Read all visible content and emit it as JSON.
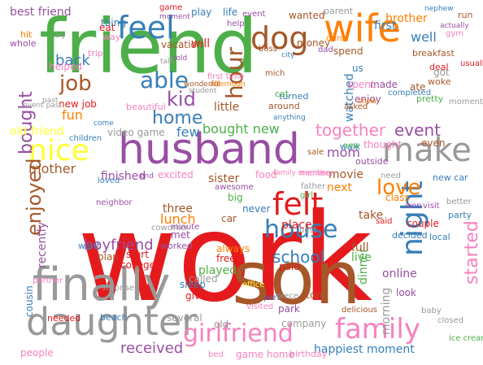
{
  "palette": {
    "red": "#e41a1c",
    "green": "#4daf4a",
    "purple": "#984ea3",
    "orange": "#ff7f00",
    "yellow": "#ffff33",
    "brown": "#a65628",
    "pink": "#f781bf",
    "gray": "#999999",
    "blue": "#377eb8"
  },
  "words": [
    {
      "text": "work",
      "color": "red"
    },
    {
      "text": "friend",
      "color": "green"
    },
    {
      "text": "son",
      "color": "brown"
    },
    {
      "text": "husband",
      "color": "purple"
    },
    {
      "text": "finally",
      "color": "gray"
    },
    {
      "text": "daughter",
      "color": "gray"
    },
    {
      "text": "wife",
      "color": "orange"
    },
    {
      "text": "feel",
      "color": "blue"
    },
    {
      "text": "dog",
      "color": "brown"
    },
    {
      "text": "nice",
      "color": "yellow"
    },
    {
      "text": "make",
      "color": "gray"
    },
    {
      "text": "family",
      "color": "pink"
    },
    {
      "text": "girlfriend",
      "color": "pink"
    },
    {
      "text": "night",
      "color": "blue"
    },
    {
      "text": "felt",
      "color": "red"
    },
    {
      "text": "house",
      "color": "blue"
    },
    {
      "text": "able",
      "color": "blue"
    },
    {
      "text": "kid",
      "color": "purple"
    },
    {
      "text": "home",
      "color": "blue"
    },
    {
      "text": "job",
      "color": "brown"
    },
    {
      "text": "hour",
      "color": "brown"
    },
    {
      "text": "together",
      "color": "pink"
    },
    {
      "text": "event",
      "color": "purple"
    },
    {
      "text": "love",
      "color": "orange"
    },
    {
      "text": "enjoyed",
      "color": "brown"
    },
    {
      "text": "bought",
      "color": "purple"
    },
    {
      "text": "started",
      "color": "pink"
    },
    {
      "text": "school",
      "color": "blue"
    },
    {
      "text": "received",
      "color": "purple"
    },
    {
      "text": "boyfriend",
      "color": "purple"
    },
    {
      "text": "happiest moment",
      "color": "blue"
    },
    {
      "text": "best friend",
      "color": "purple"
    },
    {
      "text": "game",
      "color": "red"
    },
    {
      "text": "back",
      "color": "blue"
    },
    {
      "text": "fun",
      "color": "orange"
    },
    {
      "text": "mother",
      "color": "brown"
    },
    {
      "text": "mom",
      "color": "purple"
    },
    {
      "text": "lunch",
      "color": "orange"
    },
    {
      "text": "bought new",
      "color": "green"
    },
    {
      "text": "well",
      "color": "blue"
    },
    {
      "text": "brother",
      "color": "orange"
    },
    {
      "text": "dinner",
      "color": "green"
    },
    {
      "text": "recently",
      "color": "purple"
    },
    {
      "text": "old friend",
      "color": "yellow"
    },
    {
      "text": "video game",
      "color": "gray"
    },
    {
      "text": "first",
      "color": "blue"
    },
    {
      "text": "three",
      "color": "brown"
    },
    {
      "text": "played",
      "color": "green"
    },
    {
      "text": "morning",
      "color": "gray"
    },
    {
      "text": "finished",
      "color": "purple"
    },
    {
      "text": "new job",
      "color": "red"
    },
    {
      "text": "watched",
      "color": "blue"
    },
    {
      "text": "few",
      "color": "blue"
    },
    {
      "text": "online",
      "color": "purple"
    },
    {
      "text": "place",
      "color": "red"
    },
    {
      "text": "sister",
      "color": "brown"
    },
    {
      "text": "movie",
      "color": "brown"
    },
    {
      "text": "next",
      "color": "orange"
    },
    {
      "text": "little",
      "color": "brown"
    },
    {
      "text": "will",
      "color": "red"
    },
    {
      "text": "even",
      "color": "brown"
    },
    {
      "text": "take",
      "color": "brown"
    },
    {
      "text": "cousin",
      "color": "blue"
    },
    {
      "text": "wanted",
      "color": "brown"
    },
    {
      "text": "money",
      "color": "brown"
    },
    {
      "text": "vacation",
      "color": "brown"
    },
    {
      "text": "play",
      "color": "blue"
    },
    {
      "text": "life",
      "color": "blue"
    },
    {
      "text": "sleep",
      "color": "blue"
    },
    {
      "text": "free",
      "color": "red"
    },
    {
      "text": "paid",
      "color": "red"
    },
    {
      "text": "company",
      "color": "gray"
    },
    {
      "text": "park",
      "color": "purple"
    },
    {
      "text": "store",
      "color": "brown"
    },
    {
      "text": "live",
      "color": "green"
    },
    {
      "text": "full",
      "color": "brown"
    },
    {
      "text": "look",
      "color": "purple"
    },
    {
      "text": "class",
      "color": "orange"
    },
    {
      "text": "people",
      "color": "pink"
    },
    {
      "text": "needed",
      "color": "red"
    },
    {
      "text": "beach",
      "color": "blue"
    },
    {
      "text": "old",
      "color": "gray"
    },
    {
      "text": "several",
      "color": "gray"
    },
    {
      "text": "game home",
      "color": "pink"
    },
    {
      "text": "birthday",
      "color": "pink"
    },
    {
      "text": "called",
      "color": "gray"
    },
    {
      "text": "plan",
      "color": "brown"
    },
    {
      "text": "college",
      "color": "red"
    },
    {
      "text": "start",
      "color": "red"
    },
    {
      "text": "want",
      "color": "blue"
    },
    {
      "text": "always",
      "color": "orange"
    },
    {
      "text": "worked",
      "color": "purple"
    },
    {
      "text": "party",
      "color": "blue"
    },
    {
      "text": "new car",
      "color": "blue"
    },
    {
      "text": "couple",
      "color": "red"
    },
    {
      "text": "decided",
      "color": "blue"
    },
    {
      "text": "local",
      "color": "blue"
    },
    {
      "text": "big",
      "color": "green"
    },
    {
      "text": "never",
      "color": "blue"
    },
    {
      "text": "car",
      "color": "brown"
    },
    {
      "text": "met",
      "color": "purple"
    },
    {
      "text": "give",
      "color": "red"
    },
    {
      "text": "minute",
      "color": "purple"
    },
    {
      "text": "excited",
      "color": "pink"
    },
    {
      "text": "food",
      "color": "pink"
    },
    {
      "text": "us",
      "color": "blue"
    },
    {
      "text": "made",
      "color": "purple"
    },
    {
      "text": "spent",
      "color": "pink"
    },
    {
      "text": "got",
      "color": "gray"
    },
    {
      "text": "ate",
      "color": "brown"
    },
    {
      "text": "deal",
      "color": "red"
    },
    {
      "text": "woke",
      "color": "brown"
    },
    {
      "text": "pretty",
      "color": "green"
    },
    {
      "text": "breakfast",
      "color": "brown"
    },
    {
      "text": "enjoy",
      "color": "purple"
    },
    {
      "text": "asked",
      "color": "brown"
    },
    {
      "text": "outside",
      "color": "purple"
    },
    {
      "text": "walk",
      "color": "blue"
    },
    {
      "text": "thought",
      "color": "pink"
    },
    {
      "text": "new",
      "color": "green"
    },
    {
      "text": "hit",
      "color": "orange"
    },
    {
      "text": "eat",
      "color": "red"
    },
    {
      "text": "trip",
      "color": "pink"
    },
    {
      "text": "helped",
      "color": "pink"
    },
    {
      "text": "way",
      "color": "pink"
    },
    {
      "text": "thing",
      "color": "blue"
    },
    {
      "text": "whole",
      "color": "purple"
    },
    {
      "text": "turned",
      "color": "blue"
    },
    {
      "text": "moment",
      "color": "purple"
    },
    {
      "text": "parent",
      "color": "gray"
    },
    {
      "text": "run",
      "color": "brown"
    },
    {
      "text": "nephew",
      "color": "blue"
    },
    {
      "text": "gym",
      "color": "pink"
    },
    {
      "text": "actually",
      "color": "purple"
    },
    {
      "text": "city",
      "color": "blue"
    },
    {
      "text": "dad",
      "color": "purple"
    },
    {
      "text": "boss",
      "color": "brown"
    },
    {
      "text": "spend",
      "color": "brown"
    },
    {
      "text": "drink",
      "color": "orange"
    },
    {
      "text": "told",
      "color": "purple"
    },
    {
      "text": "talk",
      "color": "gray"
    },
    {
      "text": "around",
      "color": "brown"
    },
    {
      "text": "cat",
      "color": "green"
    },
    {
      "text": "student",
      "color": "gray"
    },
    {
      "text": "afternoon",
      "color": "orange"
    },
    {
      "text": "beautiful",
      "color": "pink"
    },
    {
      "text": "come",
      "color": "blue"
    },
    {
      "text": "children",
      "color": "blue"
    },
    {
      "text": "wonderful",
      "color": "brown"
    },
    {
      "text": "sale",
      "color": "brown"
    },
    {
      "text": "member",
      "color": "pink"
    },
    {
      "text": "family member",
      "color": "pink"
    },
    {
      "text": "need",
      "color": "gray"
    },
    {
      "text": "awesome",
      "color": "purple"
    },
    {
      "text": "coworker",
      "color": "gray"
    },
    {
      "text": "father",
      "color": "gray"
    },
    {
      "text": "girl",
      "color": "green"
    },
    {
      "text": "office",
      "color": "yellow"
    },
    {
      "text": "surprised",
      "color": "gray"
    },
    {
      "text": "neighbor",
      "color": "purple"
    },
    {
      "text": "partner",
      "color": "pink"
    },
    {
      "text": "loved",
      "color": "blue"
    },
    {
      "text": "better",
      "color": "gray"
    },
    {
      "text": "visit",
      "color": "purple"
    },
    {
      "text": "won",
      "color": "purple"
    },
    {
      "text": "said",
      "color": "red"
    },
    {
      "text": "delicious",
      "color": "brown"
    },
    {
      "text": "baby",
      "color": "gray"
    },
    {
      "text": "part",
      "color": "blue"
    },
    {
      "text": "piece",
      "color": "gray"
    },
    {
      "text": "closed",
      "color": "gray"
    },
    {
      "text": "visited",
      "color": "pink"
    },
    {
      "text": "ice cream",
      "color": "green"
    },
    {
      "text": "bed",
      "color": "pink"
    },
    {
      "text": "best",
      "color": "gray"
    },
    {
      "text": "completed",
      "color": "blue"
    },
    {
      "text": "usually",
      "color": "red"
    },
    {
      "text": "moment life",
      "color": "gray"
    },
    {
      "text": "event past",
      "color": "gray"
    },
    {
      "text": "end",
      "color": "purple"
    },
    {
      "text": "anything",
      "color": "blue"
    },
    {
      "text": "show",
      "color": "orange"
    },
    {
      "text": "first time",
      "color": "pink"
    },
    {
      "text": "past",
      "color": "gray"
    },
    {
      "text": "help",
      "color": "purple"
    },
    {
      "text": "event",
      "color": "purple"
    },
    {
      "text": "try",
      "color": "gray"
    },
    {
      "text": "mich",
      "color": "brown"
    }
  ]
}
